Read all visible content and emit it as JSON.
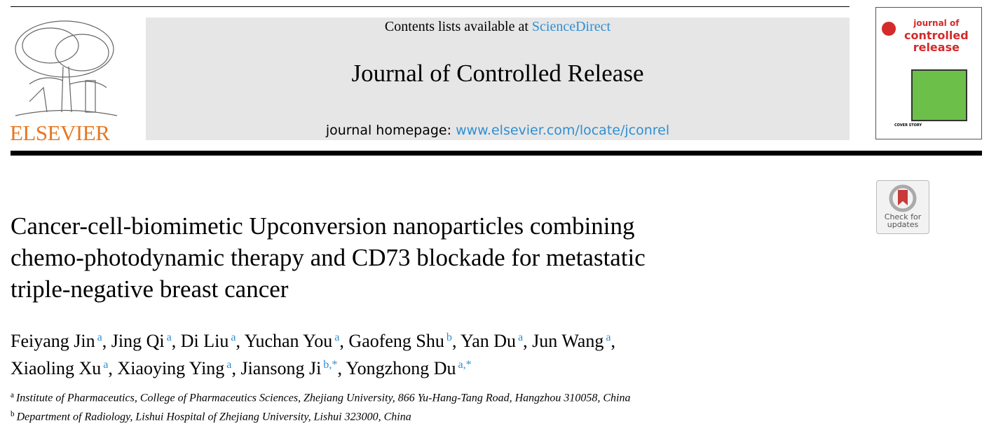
{
  "header": {
    "publisher": "ELSEVIER",
    "contents_prefix": "Contents lists available at",
    "contents_link": "ScienceDirect",
    "journal": "Journal of Controlled Release",
    "homepage_prefix": "journal homepage:",
    "homepage_link": "www.elsevier.com/locate/jconrel",
    "cover": {
      "lines": [
        "journal of",
        "controlled",
        "release"
      ],
      "story": "COVER STORY"
    }
  },
  "badge": {
    "lines": [
      "Check for",
      "updates"
    ]
  },
  "article": {
    "title_lines": [
      "Cancer-cell-biomimetic Upconversion nanoparticles combining",
      "chemo-photodynamic therapy and CD73 blockade for metastatic",
      "triple-negative breast cancer"
    ],
    "author_lines": [
      [
        {
          "name": "Feiyang Jin",
          "sup": "a",
          "sep": ","
        },
        {
          "name": "Jing Qi",
          "sup": "a",
          "sep": ","
        },
        {
          "name": "Di Liu",
          "sup": "a",
          "sep": ","
        },
        {
          "name": "Yuchan You",
          "sup": "a",
          "sep": ","
        },
        {
          "name": "Gaofeng Shu",
          "sup": "b",
          "sep": ","
        },
        {
          "name": "Yan Du",
          "sup": "a",
          "sep": ","
        },
        {
          "name": "Jun Wang",
          "sup": "a",
          "sep": ","
        }
      ],
      [
        {
          "name": "Xiaoling Xu",
          "sup": "a",
          "sep": ","
        },
        {
          "name": "Xiaoying Ying",
          "sup": "a",
          "sep": ","
        },
        {
          "name": "Jiansong Ji",
          "sup": "b,*",
          "sep": ","
        },
        {
          "name": "Yongzhong Du",
          "sup": "a,*"
        }
      ]
    ],
    "affiliations": [
      {
        "sup": "a",
        "text": "Institute of Pharmaceutics, College of Pharmaceutics Sciences, Zhejiang University, 866 Yu-Hang-Tang Road, Hangzhou 310058, China"
      },
      {
        "sup": "b",
        "text": "Department of Radiology, Lishui Hospital of Zhejiang University, Lishui 323000, China"
      }
    ]
  }
}
